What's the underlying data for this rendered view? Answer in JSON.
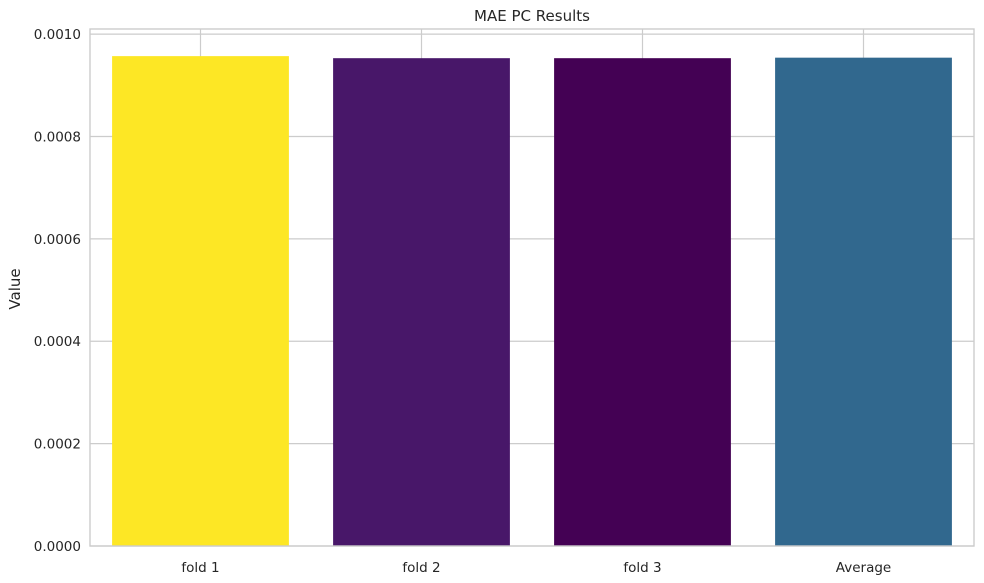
{
  "chart_data": {
    "type": "bar",
    "title": "MAE PC Results",
    "xlabel": "",
    "ylabel": "Value",
    "categories": [
      "fold 1",
      "fold 2",
      "fold 3",
      "Average"
    ],
    "values": [
      0.000957,
      0.000953,
      0.000953,
      0.000954
    ],
    "colors": [
      "#fde725",
      "#481769",
      "#440154",
      "#31688e"
    ],
    "ylim": [
      0,
      0.00101
    ],
    "yticks": [
      0,
      0.0002,
      0.0004,
      0.0006,
      0.0008,
      0.001
    ],
    "ytick_labels": [
      "0.0000",
      "0.0002",
      "0.0004",
      "0.0006",
      "0.0008",
      "0.0010"
    ],
    "grid": true,
    "legend": null
  }
}
